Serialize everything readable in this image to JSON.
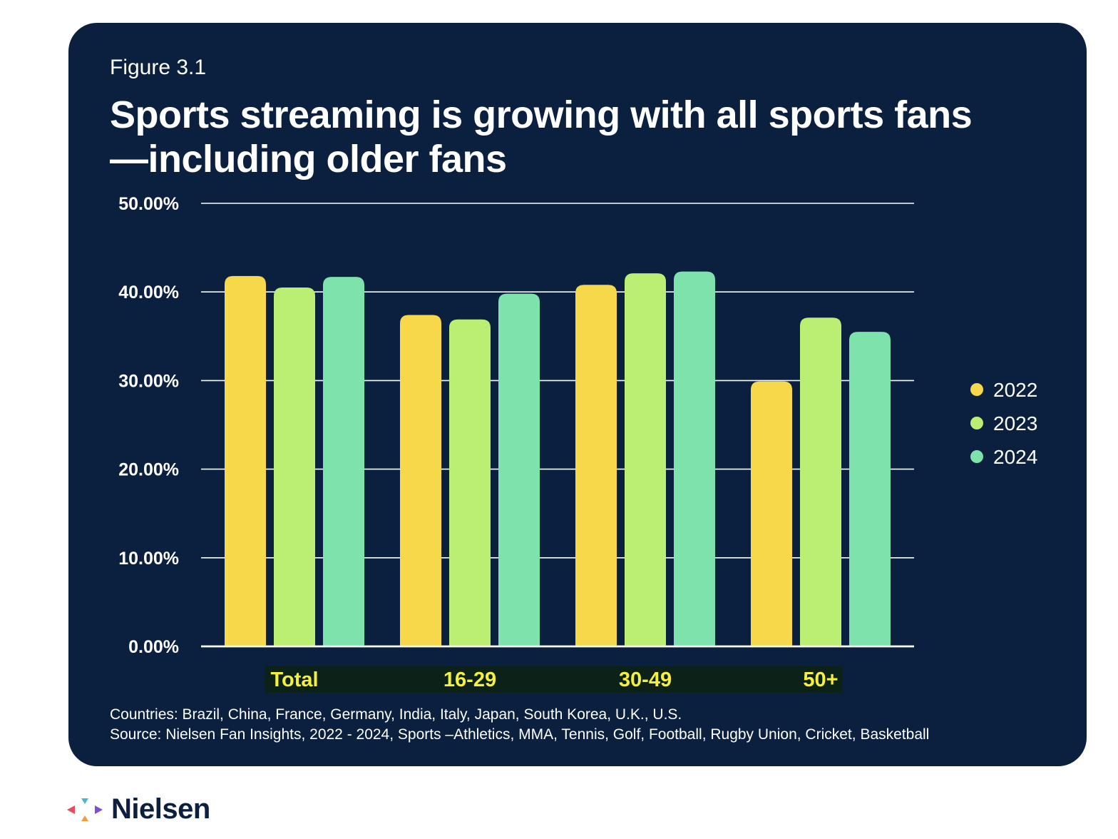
{
  "figure_label": "Figure 3.1",
  "title": "Sports streaming is growing with all sports fans—including older fans",
  "footnotes": {
    "countries": "Countries: Brazil, China, France, Germany, India, Italy, Japan, South Korea, U.K., U.S.",
    "source": "Source: Nielsen Fan Insights, 2022 - 2024, Sports –Athletics, MMA, Tennis, Golf, Football, Rugby Union, Cricket, Basketball"
  },
  "logo": {
    "name": "Nielsen"
  },
  "colors": {
    "background": "#0b1f3f",
    "series_2022": "#f6d84a",
    "series_2023": "#bbef74",
    "series_2024": "#7ee2ad",
    "category_label": "#f6ef3c",
    "category_label_bg": "#0c2117"
  },
  "chart_data": {
    "type": "bar",
    "categories": [
      "Total",
      "16-29",
      "30-49",
      "50+"
    ],
    "series": [
      {
        "name": "2022",
        "values": [
          41.8,
          37.4,
          40.8,
          29.9
        ]
      },
      {
        "name": "2023",
        "values": [
          40.5,
          36.9,
          42.1,
          37.1
        ]
      },
      {
        "name": "2024",
        "values": [
          41.7,
          39.8,
          42.3,
          35.5
        ]
      }
    ],
    "yticks": [
      "0.00%",
      "10.00%",
      "20.00%",
      "30.00%",
      "40.00%",
      "50.00%"
    ],
    "ylim": [
      0,
      50
    ],
    "grid": true,
    "legend_position": "right"
  }
}
